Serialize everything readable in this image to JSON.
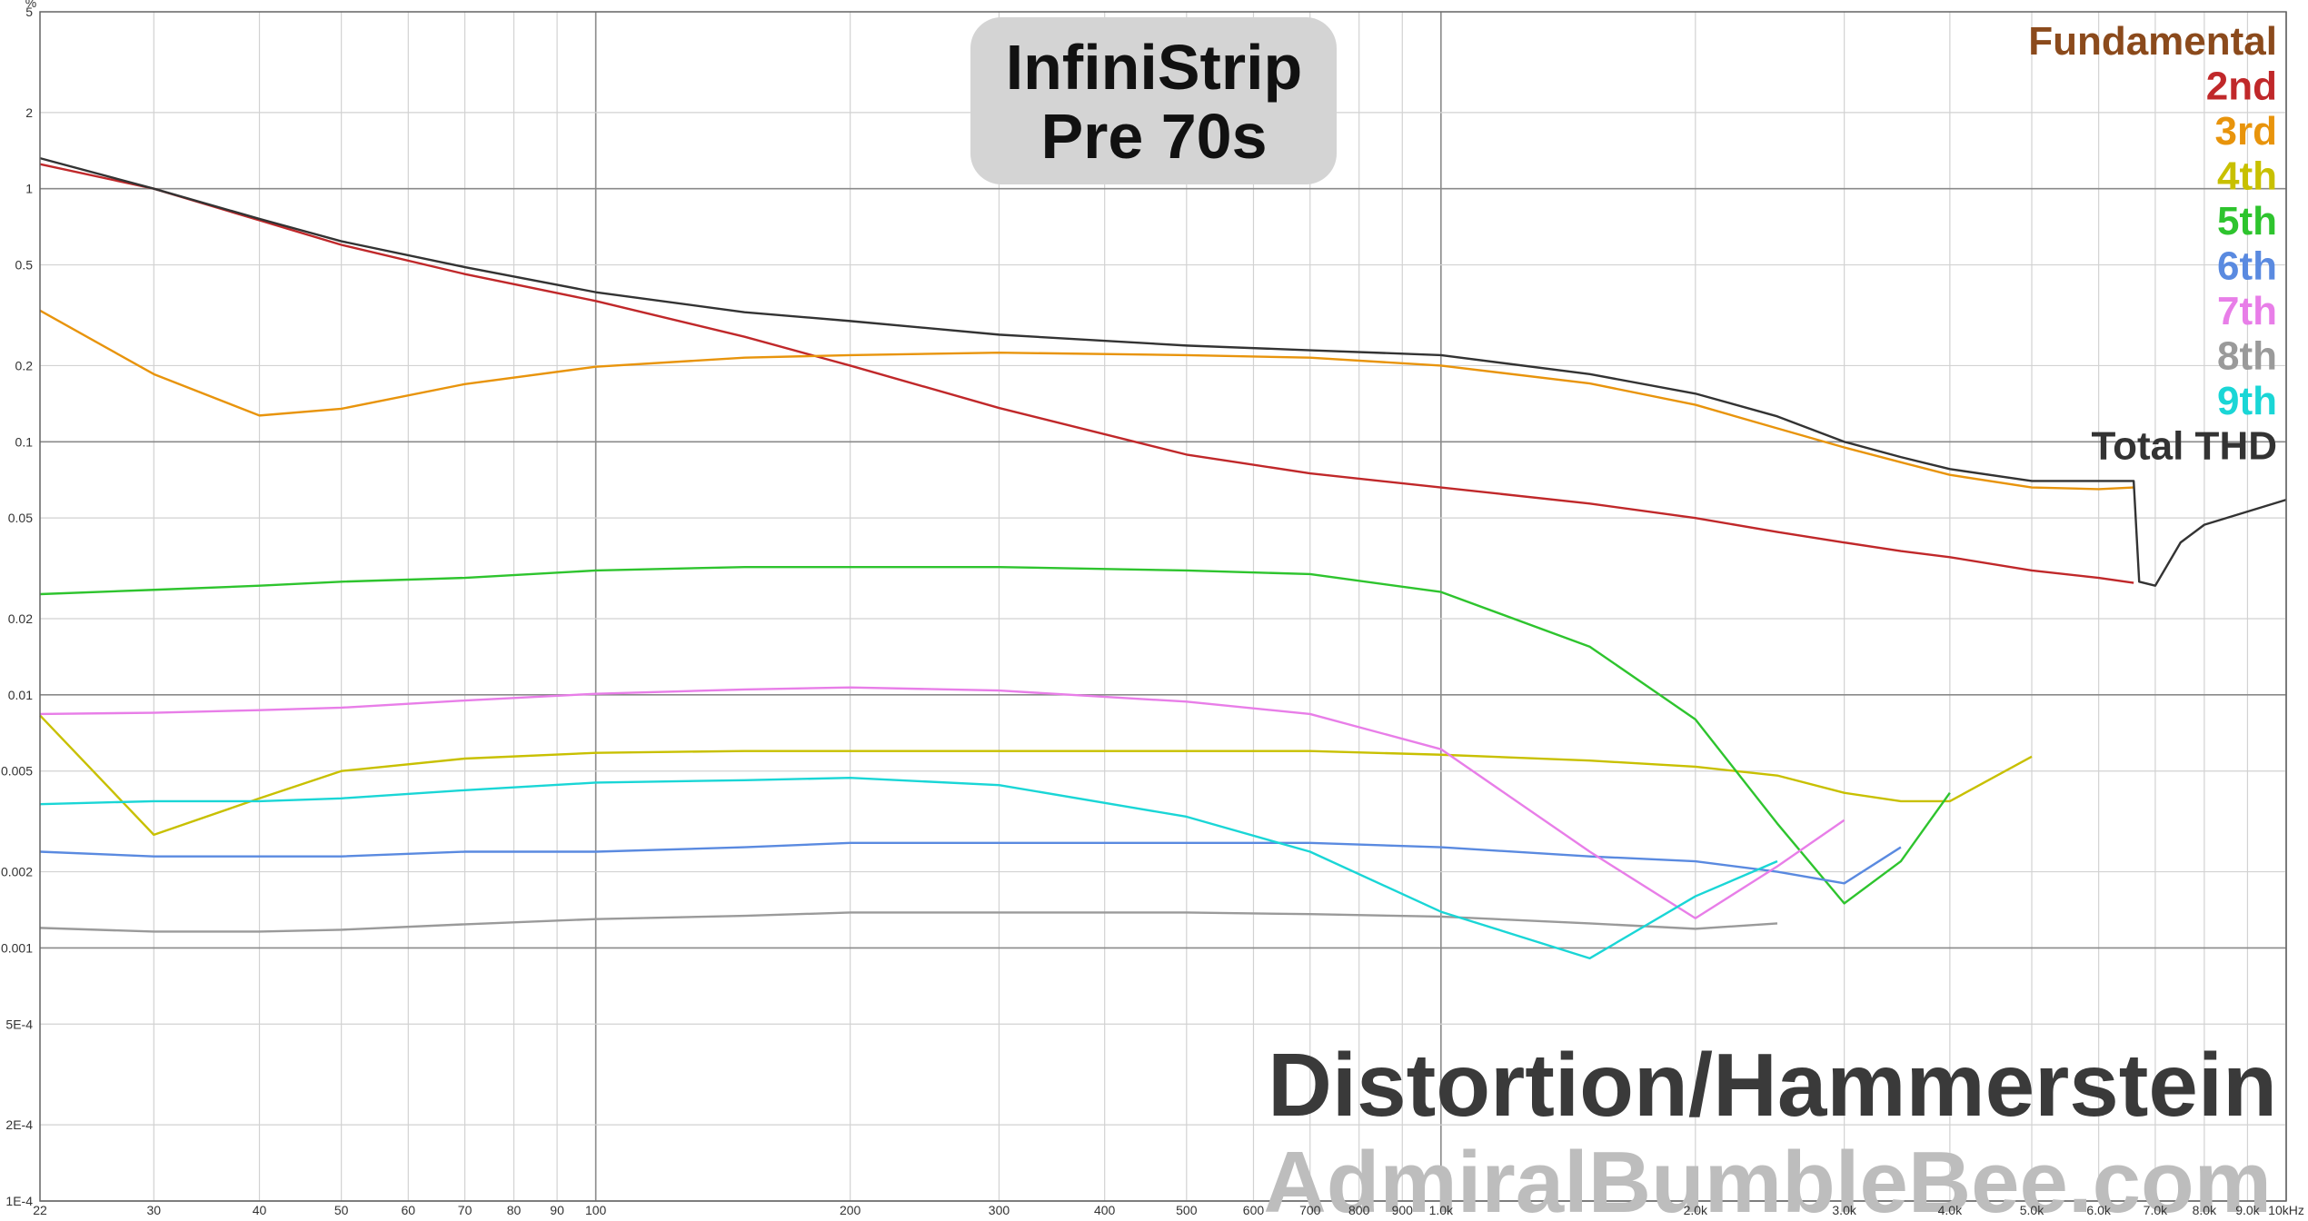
{
  "chart_data": {
    "type": "line",
    "title": [
      "InfiniStrip",
      "Pre 70s"
    ],
    "ylabel": "%",
    "annotations": [
      "Distortion/Hammerstein",
      "AdmiralBumbleBee.com"
    ],
    "xscale": "log",
    "yscale": "log",
    "grid": true,
    "legend": "top-right",
    "xlim": [
      22,
      10000
    ],
    "ylim": [
      0.0001,
      5
    ],
    "xticks": [
      22,
      30,
      40,
      50,
      60,
      70,
      80,
      90,
      100,
      200,
      300,
      400,
      500,
      600,
      700,
      800,
      900,
      {
        "value": 1000,
        "label": "1.0k"
      },
      {
        "value": 2000,
        "label": "2.0k"
      },
      {
        "value": 3000,
        "label": "3.0k"
      },
      {
        "value": 4000,
        "label": "4.0k"
      },
      {
        "value": 5000,
        "label": "5.0k"
      },
      {
        "value": 6000,
        "label": "6.0k"
      },
      {
        "value": 7000,
        "label": "7.0k"
      },
      {
        "value": 8000,
        "label": "8.0k"
      },
      {
        "value": 9000,
        "label": "9.0k"
      },
      {
        "value": 10000,
        "label": "10kHz"
      }
    ],
    "yticks": [
      5,
      2,
      1,
      0.5,
      0.2,
      0.1,
      0.05,
      0.02,
      0.01,
      0.005,
      0.002,
      0.001,
      {
        "value": 0.0005,
        "label": "5E-4"
      },
      {
        "value": 0.0002,
        "label": "2E-4"
      },
      {
        "value": 0.0001,
        "label": "1E-4"
      }
    ],
    "x": [
      22,
      30,
      40,
      50,
      70,
      100,
      150,
      200,
      300,
      500,
      700,
      1000,
      1500,
      2000,
      2500,
      3000,
      3500,
      4000,
      5000,
      6000,
      6600,
      6700,
      7000,
      7500,
      8000,
      10000
    ],
    "series": [
      {
        "name": "Fundamental",
        "color": "#8b4a1c",
        "values": [
          null,
          null,
          null,
          null,
          null,
          null,
          null,
          null,
          null,
          null,
          null,
          null,
          null,
          null,
          null,
          null,
          null,
          null,
          null,
          null,
          null,
          null,
          null,
          null,
          null,
          null
        ]
      },
      {
        "name": "2nd",
        "color": "#c0282a",
        "values": [
          1.25,
          1.0,
          0.75,
          0.6,
          0.46,
          0.36,
          0.26,
          0.2,
          0.136,
          0.089,
          0.075,
          0.066,
          0.057,
          0.05,
          0.044,
          0.04,
          0.037,
          0.035,
          0.031,
          0.029,
          0.0277,
          null,
          null,
          null,
          null,
          null
        ]
      },
      {
        "name": "3rd",
        "color": "#e8940c",
        "values": [
          0.33,
          0.185,
          0.127,
          0.135,
          0.169,
          0.198,
          0.215,
          0.22,
          0.225,
          0.22,
          0.215,
          0.2,
          0.17,
          0.14,
          0.113,
          0.095,
          0.083,
          0.074,
          0.066,
          0.065,
          0.066,
          null,
          null,
          null,
          null,
          null
        ]
      },
      {
        "name": "4th",
        "color": "#c8c000",
        "values": [
          0.0083,
          0.0028,
          0.0039,
          0.005,
          0.0056,
          0.0059,
          0.006,
          0.006,
          0.006,
          0.006,
          0.006,
          0.0058,
          0.0055,
          0.0052,
          0.0048,
          0.0041,
          0.0038,
          0.0038,
          0.0057,
          null,
          null,
          null,
          null,
          null,
          null,
          null
        ]
      },
      {
        "name": "5th",
        "color": "#2ec42e",
        "values": [
          0.025,
          0.026,
          0.027,
          0.028,
          0.029,
          0.031,
          0.032,
          0.032,
          0.032,
          0.031,
          0.03,
          0.0255,
          0.0155,
          0.008,
          0.0031,
          0.0015,
          0.0022,
          0.0041,
          null,
          null,
          null,
          null,
          null,
          null,
          null,
          null
        ]
      },
      {
        "name": "6th",
        "color": "#5a8ae0",
        "values": [
          0.0024,
          0.0023,
          0.0023,
          0.0023,
          0.0024,
          0.0024,
          0.0025,
          0.0026,
          0.0026,
          0.0026,
          0.0026,
          0.0025,
          0.0023,
          0.0022,
          0.002,
          0.0018,
          0.0025,
          null,
          null,
          null,
          null,
          null,
          null,
          null,
          null,
          null
        ]
      },
      {
        "name": "7th",
        "color": "#e87ee8",
        "values": [
          0.0084,
          0.0085,
          0.0087,
          0.0089,
          0.0095,
          0.0101,
          0.0105,
          0.0107,
          0.0104,
          0.0094,
          0.0084,
          0.0061,
          0.0024,
          0.00131,
          0.0021,
          0.0032,
          null,
          null,
          null,
          null,
          null,
          null,
          null,
          null,
          null,
          null
        ]
      },
      {
        "name": "8th",
        "color": "#9a9a9a",
        "values": [
          0.0012,
          0.00116,
          0.00116,
          0.00118,
          0.00124,
          0.0013,
          0.00134,
          0.00138,
          0.00138,
          0.00138,
          0.00136,
          0.00133,
          0.00125,
          0.00119,
          0.00125,
          null,
          null,
          null,
          null,
          null,
          null,
          null,
          null,
          null,
          null,
          null
        ]
      },
      {
        "name": "9th",
        "color": "#1ad6d6",
        "values": [
          0.0037,
          0.0038,
          0.0038,
          0.0039,
          0.0042,
          0.0045,
          0.0046,
          0.0047,
          0.0044,
          0.0033,
          0.0024,
          0.00139,
          0.00091,
          0.0016,
          0.0022,
          null,
          null,
          null,
          null,
          null,
          null,
          null,
          null,
          null,
          null,
          null
        ]
      },
      {
        "name": "Total THD",
        "color": "#333333",
        "values": [
          1.32,
          1.0,
          0.76,
          0.62,
          0.49,
          0.39,
          0.325,
          0.3,
          0.265,
          0.24,
          0.23,
          0.22,
          0.185,
          0.155,
          0.126,
          0.1,
          0.087,
          0.078,
          0.07,
          0.07,
          0.07,
          0.028,
          0.027,
          0.04,
          0.047,
          0.059
        ]
      }
    ]
  }
}
